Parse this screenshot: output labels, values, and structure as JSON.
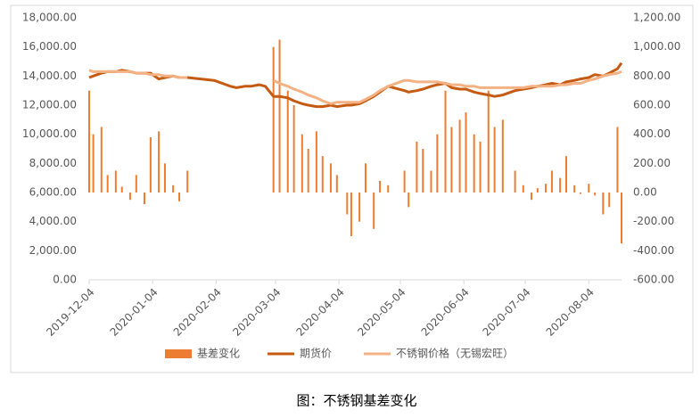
{
  "chart_data": {
    "type": "bar_line",
    "caption": "图：不锈钢基差变化",
    "x": [
      "2019-12-04",
      "2019-12-06",
      "2019-12-10",
      "2019-12-13",
      "2019-12-17",
      "2019-12-20",
      "2019-12-24",
      "2019-12-27",
      "2019-12-31",
      "2020-01-03",
      "2020-01-07",
      "2020-01-10",
      "2020-01-14",
      "2020-01-17",
      "2020-01-21",
      "2020-02-03",
      "2020-02-07",
      "2020-02-11",
      "2020-02-14",
      "2020-02-18",
      "2020-02-21",
      "2020-02-25",
      "2020-02-28",
      "2020-03-03",
      "2020-03-06",
      "2020-03-10",
      "2020-03-13",
      "2020-03-17",
      "2020-03-20",
      "2020-03-24",
      "2020-03-27",
      "2020-03-31",
      "2020-04-03",
      "2020-04-08",
      "2020-04-10",
      "2020-04-14",
      "2020-04-17",
      "2020-04-21",
      "2020-04-24",
      "2020-04-28",
      "2020-05-06",
      "2020-05-08",
      "2020-05-12",
      "2020-05-15",
      "2020-05-19",
      "2020-05-22",
      "2020-05-26",
      "2020-05-29",
      "2020-06-02",
      "2020-06-05",
      "2020-06-09",
      "2020-06-12",
      "2020-06-16",
      "2020-06-19",
      "2020-06-23",
      "2020-06-29",
      "2020-07-03",
      "2020-07-07",
      "2020-07-10",
      "2020-07-14",
      "2020-07-17",
      "2020-07-21",
      "2020-07-24",
      "2020-07-28",
      "2020-07-31",
      "2020-08-04",
      "2020-08-07",
      "2020-08-11",
      "2020-08-14",
      "2020-08-18",
      "2020-08-20"
    ],
    "series": [
      {
        "name": "基差变化",
        "kind": "bar",
        "axis": "y2",
        "color": "#ed7d31",
        "values": [
          700,
          400,
          450,
          120,
          150,
          40,
          -50,
          120,
          -80,
          380,
          420,
          200,
          50,
          -60,
          150,
          null,
          null,
          null,
          null,
          null,
          null,
          null,
          null,
          1000,
          1050,
          700,
          600,
          400,
          300,
          420,
          250,
          200,
          120,
          -150,
          -300,
          -200,
          200,
          -250,
          80,
          50,
          150,
          -100,
          350,
          300,
          150,
          400,
          700,
          450,
          500,
          550,
          400,
          350,
          700,
          450,
          500,
          150,
          50,
          -50,
          30,
          60,
          150,
          100,
          250,
          50,
          -10,
          60,
          -20,
          -150,
          -100,
          450,
          -350
        ]
      },
      {
        "name": "期货价",
        "kind": "line",
        "axis": "y",
        "color": "#c55a11",
        "values": [
          13900,
          14000,
          14200,
          14300,
          14300,
          14400,
          14300,
          14200,
          14200,
          14200,
          13800,
          13900,
          14000,
          13900,
          13900,
          13700,
          13500,
          13300,
          13200,
          13300,
          13300,
          13400,
          13300,
          12600,
          12600,
          12500,
          12300,
          12100,
          12000,
          11900,
          11900,
          12000,
          11900,
          12000,
          12000,
          12100,
          12300,
          12600,
          12900,
          13300,
          13000,
          12900,
          13000,
          13100,
          13300,
          13400,
          13500,
          13200,
          13100,
          13100,
          12900,
          12800,
          12700,
          12600,
          12700,
          13000,
          13100,
          13200,
          13300,
          13400,
          13500,
          13400,
          13600,
          13700,
          13800,
          13900,
          14100,
          14000,
          14200,
          14500,
          14900
        ]
      },
      {
        "name": "不锈钢价格（无锡宏旺）",
        "kind": "line",
        "axis": "y",
        "color": "#f4b183",
        "values": [
          14400,
          14300,
          14300,
          14300,
          14300,
          14300,
          14300,
          14200,
          14200,
          14100,
          14100,
          14000,
          14000,
          13900,
          13900,
          null,
          null,
          null,
          null,
          null,
          null,
          null,
          null,
          13700,
          13500,
          13300,
          13100,
          12900,
          12700,
          12500,
          12300,
          12100,
          12200,
          12200,
          12200,
          12200,
          12400,
          12700,
          13000,
          13300,
          13700,
          13700,
          13600,
          13600,
          13600,
          13600,
          13500,
          13400,
          13400,
          13300,
          13300,
          13200,
          13200,
          13200,
          13200,
          13200,
          13200,
          13300,
          13300,
          13300,
          13300,
          13400,
          13400,
          13500,
          13500,
          13700,
          13800,
          14000,
          14100,
          14200,
          14300
        ]
      }
    ],
    "xlim": [
      "2019-12-04",
      "2020-08-20"
    ],
    "xticks": [
      "2019-12-04",
      "2020-01-04",
      "2020-02-04",
      "2020-03-04",
      "2020-04-04",
      "2020-05-04",
      "2020-06-04",
      "2020-07-04",
      "2020-08-04"
    ],
    "ylim": [
      0,
      18000
    ],
    "yticks": [
      {
        "value": 0,
        "label": "0.00"
      },
      {
        "value": 2000,
        "label": "2,000.00"
      },
      {
        "value": 4000,
        "label": "4,000.00"
      },
      {
        "value": 6000,
        "label": "6,000.00"
      },
      {
        "value": 8000,
        "label": "8,000.00"
      },
      {
        "value": 10000,
        "label": "10,000.00"
      },
      {
        "value": 12000,
        "label": "12,000.00"
      },
      {
        "value": 14000,
        "label": "14,000.00"
      },
      {
        "value": 16000,
        "label": "16,000.00"
      },
      {
        "value": 18000,
        "label": "18,000.00"
      }
    ],
    "y2lim": [
      -600,
      1200
    ],
    "y2ticks": [
      {
        "value": -600,
        "label": "-600.00"
      },
      {
        "value": -400,
        "label": "-400.00"
      },
      {
        "value": -200,
        "label": "-200.00"
      },
      {
        "value": 0,
        "label": "0.00"
      },
      {
        "value": 200,
        "label": "200.00"
      },
      {
        "value": 400,
        "label": "400.00"
      },
      {
        "value": 600,
        "label": "600.00"
      },
      {
        "value": 800,
        "label": "800.00"
      },
      {
        "value": 1000,
        "label": "1,000.00"
      },
      {
        "value": 1200,
        "label": "1,200.00"
      }
    ],
    "grid": false,
    "legend": "bottom"
  }
}
